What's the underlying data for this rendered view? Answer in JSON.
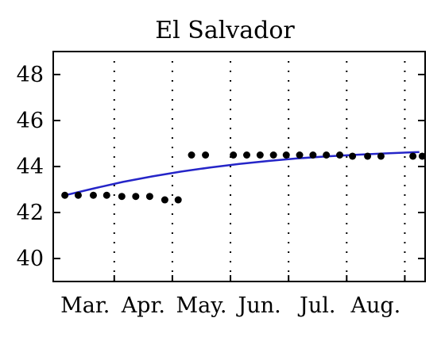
{
  "chart_data": {
    "type": "scatter",
    "title": "El Salvador",
    "xlabel": "",
    "ylabel": "",
    "ylim": [
      39,
      49
    ],
    "xlim": [
      -0.2,
      6.2
    ],
    "x_ticks": [
      {
        "pos": 0.35,
        "label": "Mar."
      },
      {
        "pos": 1.35,
        "label": "Apr."
      },
      {
        "pos": 2.35,
        "label": "May."
      },
      {
        "pos": 3.35,
        "label": "Jun."
      },
      {
        "pos": 4.35,
        "label": "Jul."
      },
      {
        "pos": 5.35,
        "label": "Aug."
      }
    ],
    "x_gridlines": [
      0.85,
      1.85,
      2.85,
      3.85,
      4.85,
      5.85
    ],
    "y_ticks": [
      40,
      42,
      44,
      46,
      48
    ],
    "series": [
      {
        "type": "scatter",
        "color": "#000000",
        "points": [
          [
            0.0,
            42.75
          ],
          [
            0.23,
            42.75
          ],
          [
            0.49,
            42.75
          ],
          [
            0.72,
            42.75
          ],
          [
            0.98,
            42.7
          ],
          [
            1.22,
            42.7
          ],
          [
            1.46,
            42.7
          ],
          [
            1.72,
            42.55
          ],
          [
            1.95,
            42.55
          ],
          [
            2.18,
            44.5
          ],
          [
            2.42,
            44.5
          ],
          [
            2.9,
            44.5
          ],
          [
            3.13,
            44.5
          ],
          [
            3.36,
            44.5
          ],
          [
            3.59,
            44.5
          ],
          [
            3.81,
            44.5
          ],
          [
            4.04,
            44.5
          ],
          [
            4.27,
            44.5
          ],
          [
            4.5,
            44.5
          ],
          [
            4.73,
            44.5
          ],
          [
            4.95,
            44.45
          ],
          [
            5.21,
            44.45
          ],
          [
            5.44,
            44.45
          ],
          [
            5.99,
            44.45
          ],
          [
            6.15,
            44.45
          ]
        ]
      },
      {
        "type": "line",
        "color": "#2525c8",
        "points": [
          [
            0.0,
            42.75
          ],
          [
            0.5,
            43.05
          ],
          [
            1.0,
            43.33
          ],
          [
            1.5,
            43.57
          ],
          [
            2.0,
            43.78
          ],
          [
            2.5,
            43.96
          ],
          [
            3.0,
            44.11
          ],
          [
            3.5,
            44.24
          ],
          [
            4.0,
            44.35
          ],
          [
            4.5,
            44.44
          ],
          [
            5.0,
            44.51
          ],
          [
            5.5,
            44.57
          ],
          [
            6.1,
            44.63
          ]
        ]
      }
    ],
    "grid": "x-dotted"
  }
}
